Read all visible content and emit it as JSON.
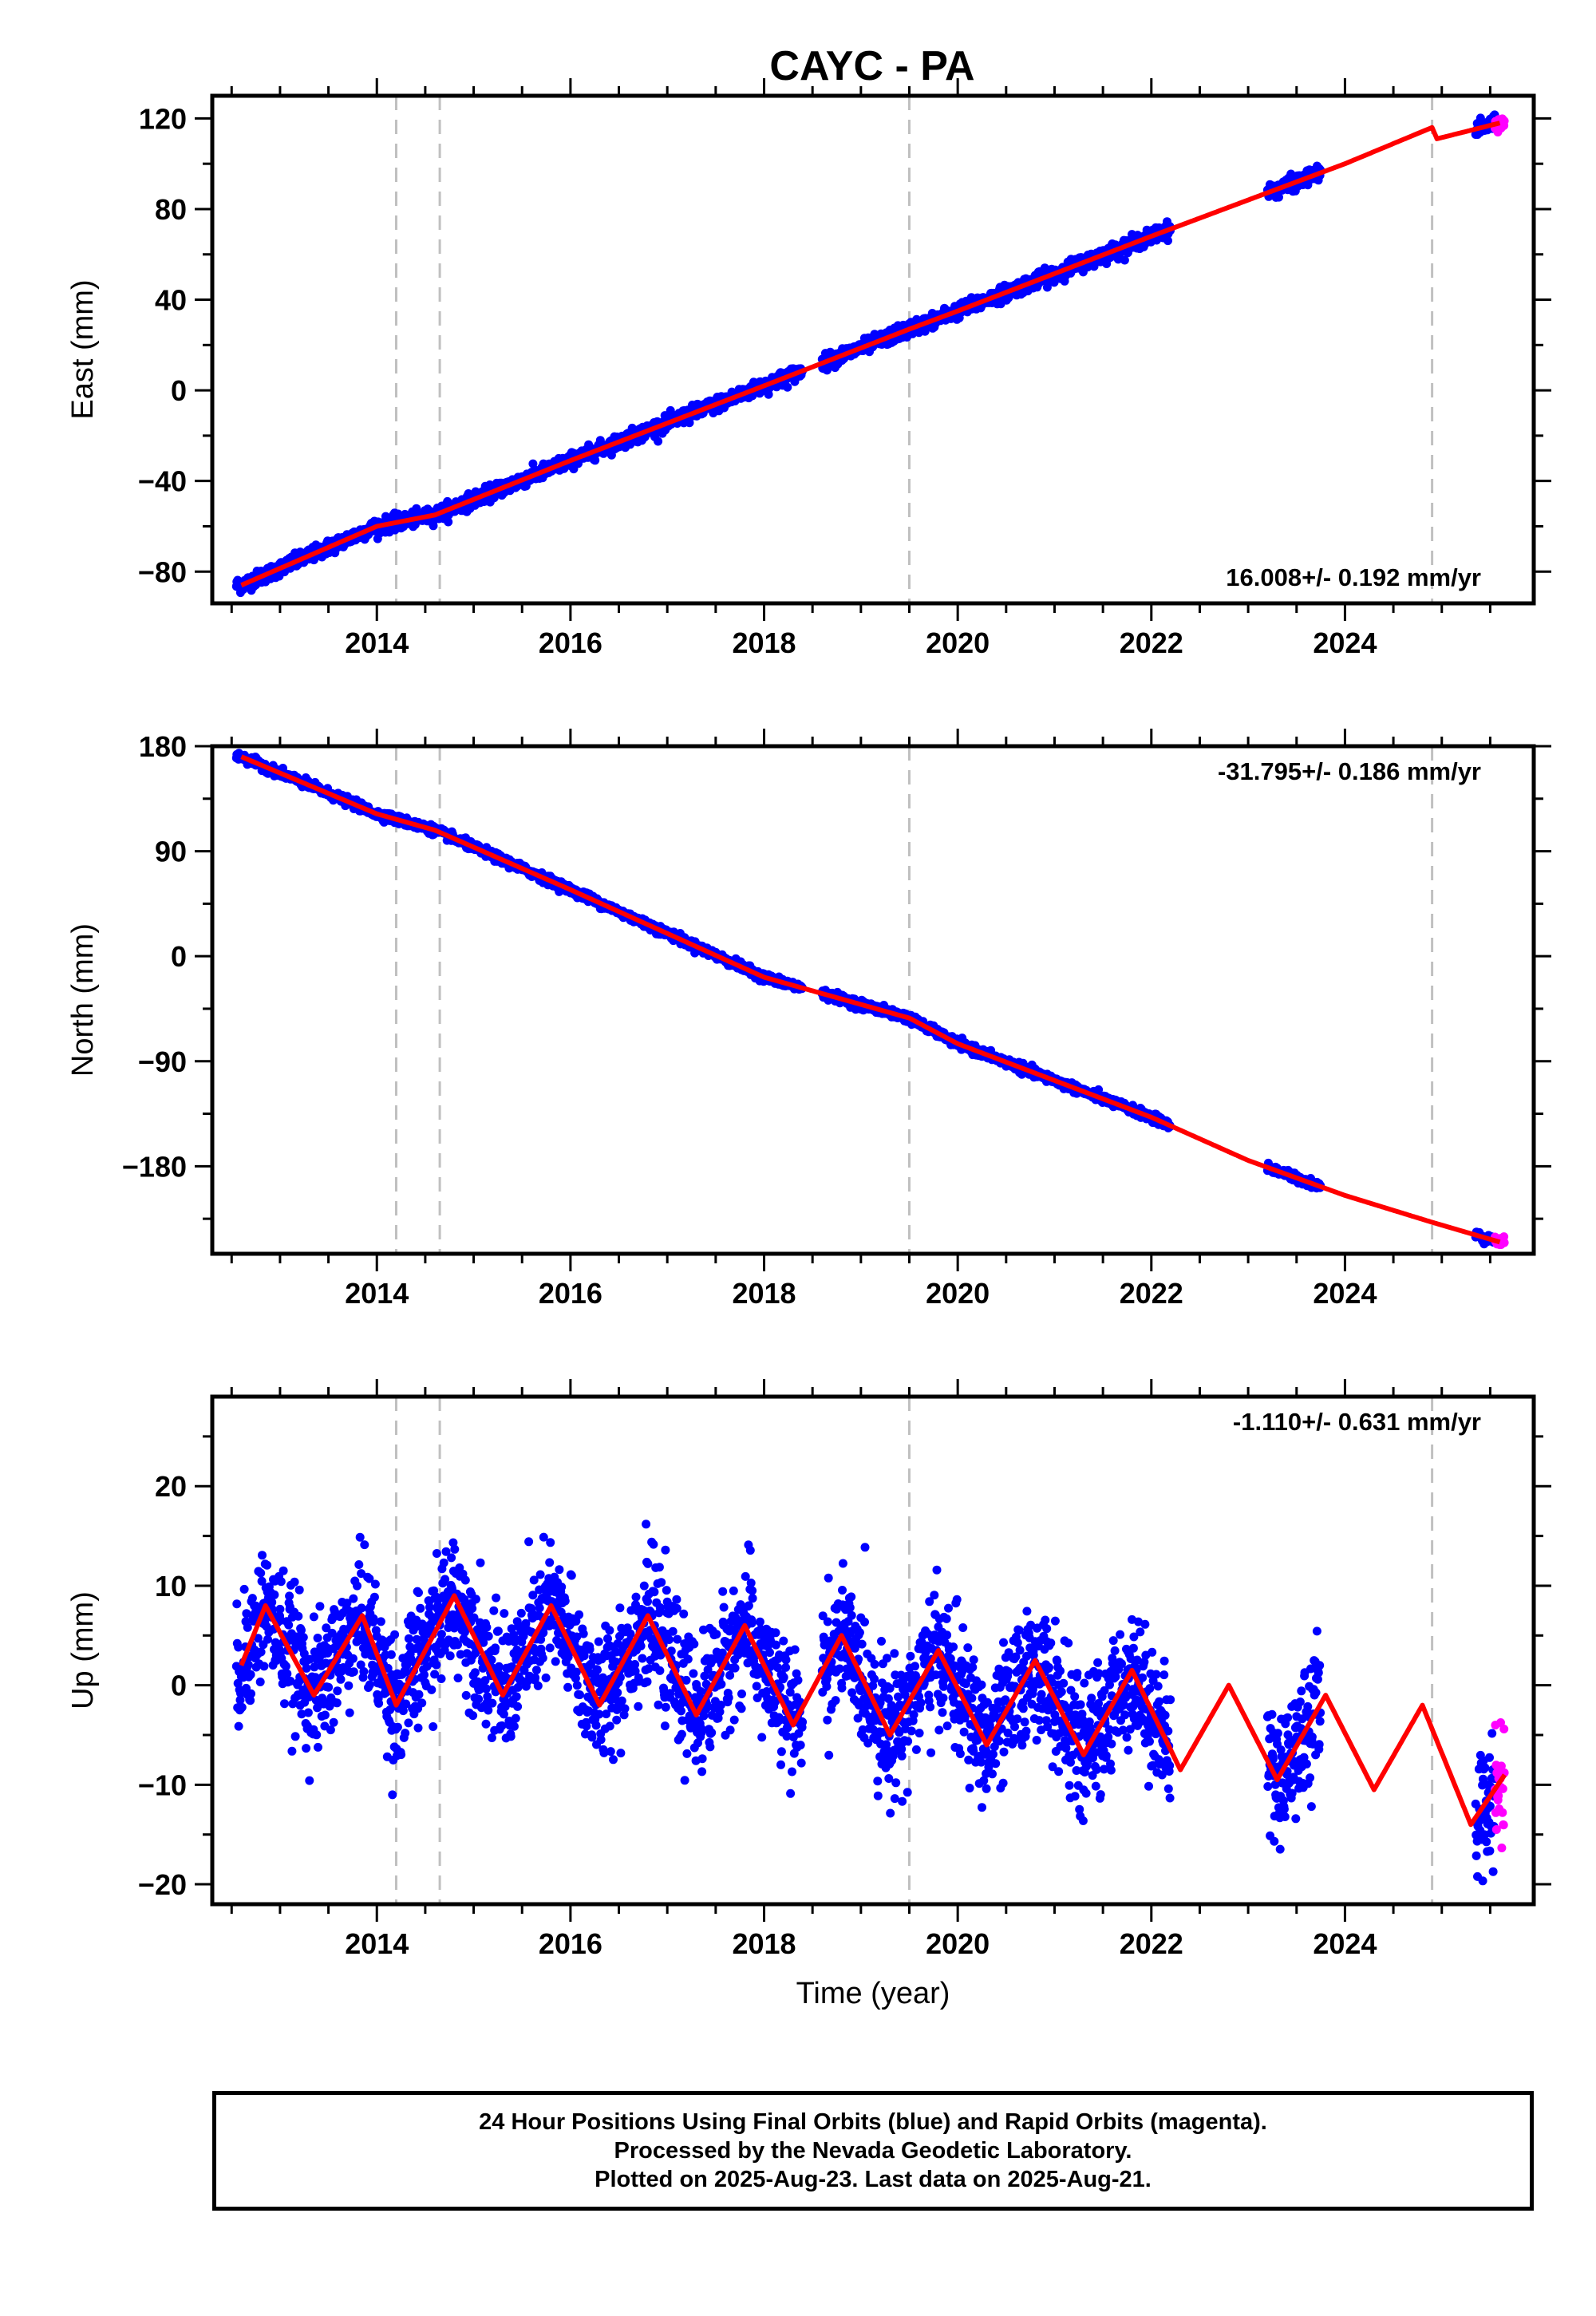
{
  "title": "CAYC - PA",
  "colors": {
    "final_orbits": "#0000ff",
    "rapid_orbits": "#ff00ff",
    "model": "#ff0000",
    "event_lines": "#c0c0c0"
  },
  "caption": [
    "24 Hour Positions Using Final Orbits (blue) and Rapid Orbits (magenta).",
    "Processed by the Nevada Geodetic Laboratory.",
    "Plotted on 2025-Aug-23. Last data on 2025-Aug-21."
  ],
  "chart_data": [
    {
      "type": "scatter",
      "name": "east",
      "ylabel": "East (mm)",
      "xlabel": "",
      "xlim": [
        2012.3,
        2025.95
      ],
      "ylim": [
        -94,
        130
      ],
      "xticks": [
        2014,
        2016,
        2018,
        2020,
        2022,
        2024
      ],
      "xticks_minor_every": 0.5,
      "yticks": [
        -80,
        -40,
        0,
        40,
        80,
        120
      ],
      "yticks_minor_every": 20,
      "rate_text": "16.008+/- 0.192 mm/yr",
      "rate_position": "bottom-right",
      "event_lines": [
        2014.2,
        2014.65,
        2019.5,
        2024.9
      ],
      "trend": {
        "t0": 2012.5,
        "y0": -87,
        "slope": 16.008,
        "annual_amp": 1.5,
        "annual_phase": 0.2,
        "scatter": 1.6
      },
      "offsets": [
        {
          "at": 2014.65,
          "value": 0
        },
        {
          "at": 2024.9,
          "value": -5
        }
      ],
      "model_points": [
        {
          "x": 2012.6,
          "y": -86
        },
        {
          "x": 2014.0,
          "y": -60
        },
        {
          "x": 2014.6,
          "y": -55
        },
        {
          "x": 2016.0,
          "y": -31
        },
        {
          "x": 2018.0,
          "y": 2
        },
        {
          "x": 2019.5,
          "y": 27
        },
        {
          "x": 2020.0,
          "y": 35
        },
        {
          "x": 2022.0,
          "y": 68
        },
        {
          "x": 2023.0,
          "y": 84
        },
        {
          "x": 2024.0,
          "y": 100
        },
        {
          "x": 2024.9,
          "y": 116
        },
        {
          "x": 2024.95,
          "y": 111
        },
        {
          "x": 2025.6,
          "y": 118
        }
      ],
      "data_segments": [
        [
          2012.55,
          2018.4
        ],
        [
          2018.6,
          2022.2
        ],
        [
          2023.2,
          2023.75
        ],
        [
          2025.35,
          2025.65
        ]
      ],
      "rapid_segment": [
        2025.55,
        2025.65
      ]
    },
    {
      "type": "scatter",
      "name": "north",
      "ylabel": "North (mm)",
      "xlabel": "",
      "xlim": [
        2012.3,
        2025.95
      ],
      "ylim": [
        -255,
        180
      ],
      "xticks": [
        2014,
        2016,
        2018,
        2020,
        2022,
        2024
      ],
      "xticks_minor_every": 0.5,
      "yticks": [
        -180,
        -90,
        0,
        90,
        180
      ],
      "yticks_minor_every": 45,
      "rate_text": "-31.795+/- 0.186 mm/yr",
      "rate_position": "top-right",
      "event_lines": [
        2014.2,
        2014.65,
        2019.5,
        2024.9
      ],
      "trend": {
        "t0": 2012.5,
        "y0": 172,
        "slope": -31.795,
        "annual_amp": 3.5,
        "annual_phase": 0.1,
        "scatter": 1.8
      },
      "offsets": [],
      "model_points": [
        {
          "x": 2012.6,
          "y": 171
        },
        {
          "x": 2014.0,
          "y": 122
        },
        {
          "x": 2014.6,
          "y": 108
        },
        {
          "x": 2016.0,
          "y": 57
        },
        {
          "x": 2018.0,
          "y": -18
        },
        {
          "x": 2019.5,
          "y": -53
        },
        {
          "x": 2020.0,
          "y": -75
        },
        {
          "x": 2022.0,
          "y": -138
        },
        {
          "x": 2023.0,
          "y": -175
        },
        {
          "x": 2024.0,
          "y": -205
        },
        {
          "x": 2024.9,
          "y": -228
        },
        {
          "x": 2025.6,
          "y": -245
        }
      ],
      "data_segments": [
        [
          2012.55,
          2018.4
        ],
        [
          2018.6,
          2022.2
        ],
        [
          2023.2,
          2023.75
        ],
        [
          2025.35,
          2025.65
        ]
      ],
      "rapid_segment": [
        2025.55,
        2025.65
      ]
    },
    {
      "type": "scatter",
      "name": "up",
      "ylabel": "Up (mm)",
      "xlabel": "Time (year)",
      "xlim": [
        2012.3,
        2025.95
      ],
      "ylim": [
        -22,
        29
      ],
      "xticks": [
        2014,
        2016,
        2018,
        2020,
        2022,
        2024
      ],
      "xticks_minor_every": 0.5,
      "yticks": [
        -20,
        -10,
        0,
        10,
        20
      ],
      "yticks_minor_every": 5,
      "rate_text": "-1.110+/- 0.631 mm/yr",
      "rate_position": "top-right",
      "event_lines": [
        2014.2,
        2014.65,
        2019.5,
        2024.9
      ],
      "trend": {
        "t0": 2012.5,
        "y0": 3,
        "slope": -1.11,
        "annual_amp": 5,
        "annual_phase": 0.05,
        "scatter": 3.2
      },
      "offsets": [],
      "model_points": [
        {
          "x": 2012.6,
          "y": 2
        },
        {
          "x": 2012.85,
          "y": 8
        },
        {
          "x": 2013.35,
          "y": -1
        },
        {
          "x": 2013.85,
          "y": 7
        },
        {
          "x": 2014.2,
          "y": -2
        },
        {
          "x": 2014.8,
          "y": 9
        },
        {
          "x": 2015.3,
          "y": -1
        },
        {
          "x": 2015.8,
          "y": 8
        },
        {
          "x": 2016.3,
          "y": -2
        },
        {
          "x": 2016.8,
          "y": 7
        },
        {
          "x": 2017.3,
          "y": -3
        },
        {
          "x": 2017.8,
          "y": 6
        },
        {
          "x": 2018.3,
          "y": -4
        },
        {
          "x": 2018.8,
          "y": 5
        },
        {
          "x": 2019.3,
          "y": -5
        },
        {
          "x": 2019.8,
          "y": 3.5
        },
        {
          "x": 2020.3,
          "y": -6
        },
        {
          "x": 2020.8,
          "y": 2.5
        },
        {
          "x": 2021.3,
          "y": -7
        },
        {
          "x": 2021.8,
          "y": 1.5
        },
        {
          "x": 2022.3,
          "y": -8.5
        },
        {
          "x": 2022.8,
          "y": 0
        },
        {
          "x": 2023.3,
          "y": -9.5
        },
        {
          "x": 2023.8,
          "y": -1
        },
        {
          "x": 2024.3,
          "y": -10.5
        },
        {
          "x": 2024.8,
          "y": -2
        },
        {
          "x": 2025.3,
          "y": -14
        },
        {
          "x": 2025.65,
          "y": -9
        }
      ],
      "data_segments": [
        [
          2012.55,
          2018.4
        ],
        [
          2018.6,
          2022.2
        ],
        [
          2023.2,
          2023.75
        ],
        [
          2025.35,
          2025.65
        ]
      ],
      "rapid_segment": [
        2025.55,
        2025.65
      ]
    }
  ]
}
